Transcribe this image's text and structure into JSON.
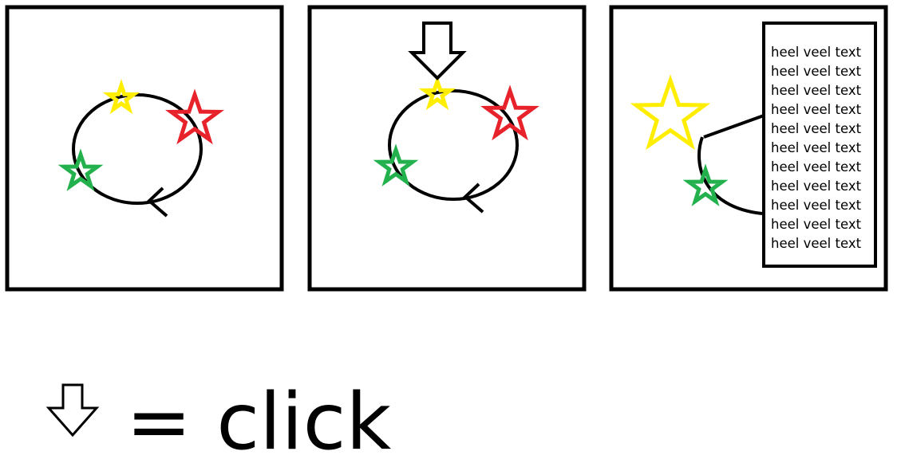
{
  "colors": {
    "yellow": "#ffee00",
    "red": "#e8222a",
    "green": "#22b14c",
    "outline": "#000000"
  },
  "icons": {
    "click_marker": "down-arrow-icon"
  },
  "panel3": {
    "popup_lines": [
      "heel veel text",
      "heel veel text",
      "heel veel text",
      "heel veel text",
      "heel veel text",
      "heel veel text",
      "heel veel text",
      "heel veel text",
      "heel veel text",
      "heel veel text",
      "heel veel text"
    ]
  },
  "legend": {
    "label": "= click"
  }
}
